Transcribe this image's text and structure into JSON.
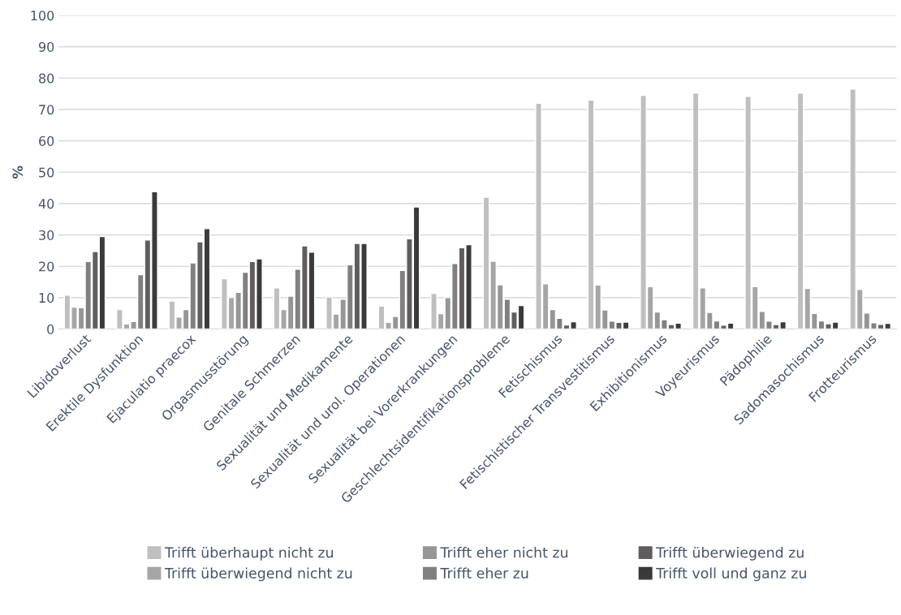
{
  "chart_data": {
    "type": "bar",
    "ylabel": "%",
    "categories": [
      "Libidoverlust",
      "Erektile Dysfunktion",
      "Ejaculatio praecox",
      "Orgasmusstörung",
      "Genitale Schmerzen",
      "Sexualität und Medikamente",
      "Sexualität und urol. Operationen",
      "Sexualität bei Vorerkrankungen",
      "Geschlechtsidentifikationsprobleme",
      "Fetischismus",
      "Fetischistischer Transvestitismus",
      "Exhibitionismus",
      "Voyeurismus",
      "Pädophilie",
      "Sadomasochismus",
      "Frotteurismus"
    ],
    "series": [
      {
        "name": "Trifft überhaupt nicht zu",
        "color": "#bfbfbf",
        "values": [
          10.8,
          6.2,
          8.9,
          16,
          13.1,
          10.2,
          7.3,
          11.3,
          42,
          72,
          73,
          74.5,
          75.2,
          74.2,
          75.2,
          76.5
        ]
      },
      {
        "name": "Trifft überwiegend nicht zu",
        "color": "#a6a6a6",
        "values": [
          7,
          1.6,
          3.8,
          10,
          6.2,
          4.8,
          2.1,
          4.9,
          21.6,
          14.4,
          14,
          13.5,
          13.1,
          13.5,
          12.9,
          12.6
        ]
      },
      {
        "name": "Trifft eher nicht zu",
        "color": "#969696",
        "values": [
          6.8,
          2.4,
          6.2,
          11.7,
          10.5,
          9.5,
          4,
          10,
          14.1,
          6.2,
          6.1,
          5.4,
          5.3,
          5.6,
          5,
          5.1
        ]
      },
      {
        "name": "Trifft eher zu",
        "color": "#808080",
        "values": [
          21.5,
          17.3,
          21.1,
          18.1,
          19.1,
          20.5,
          18.7,
          20.9,
          9.5,
          3.4,
          2.5,
          3,
          2.6,
          2.5,
          2.6,
          2
        ]
      },
      {
        "name": "Trifft überwiegend zu",
        "color": "#625d5d",
        "values": [
          24.7,
          28.4,
          27.8,
          21.5,
          26.5,
          27.3,
          28.8,
          25.9,
          5.4,
          1.3,
          2.1,
          1.4,
          1.2,
          1.4,
          1.7,
          1.5
        ]
      },
      {
        "name": "Trifft voll und ganz zu",
        "color": "#3a3a3a",
        "values": [
          29.5,
          43.8,
          32,
          22.4,
          24.5,
          27.3,
          38.9,
          26.9,
          7.5,
          2.3,
          2.2,
          1.9,
          1.9,
          2.3,
          2.2,
          1.8
        ]
      }
    ],
    "ylim": [
      0,
      100
    ],
    "yticks": [
      0,
      10,
      20,
      30,
      40,
      50,
      60,
      70,
      80,
      90,
      100
    ],
    "grid": "y",
    "legend": "bottom"
  }
}
